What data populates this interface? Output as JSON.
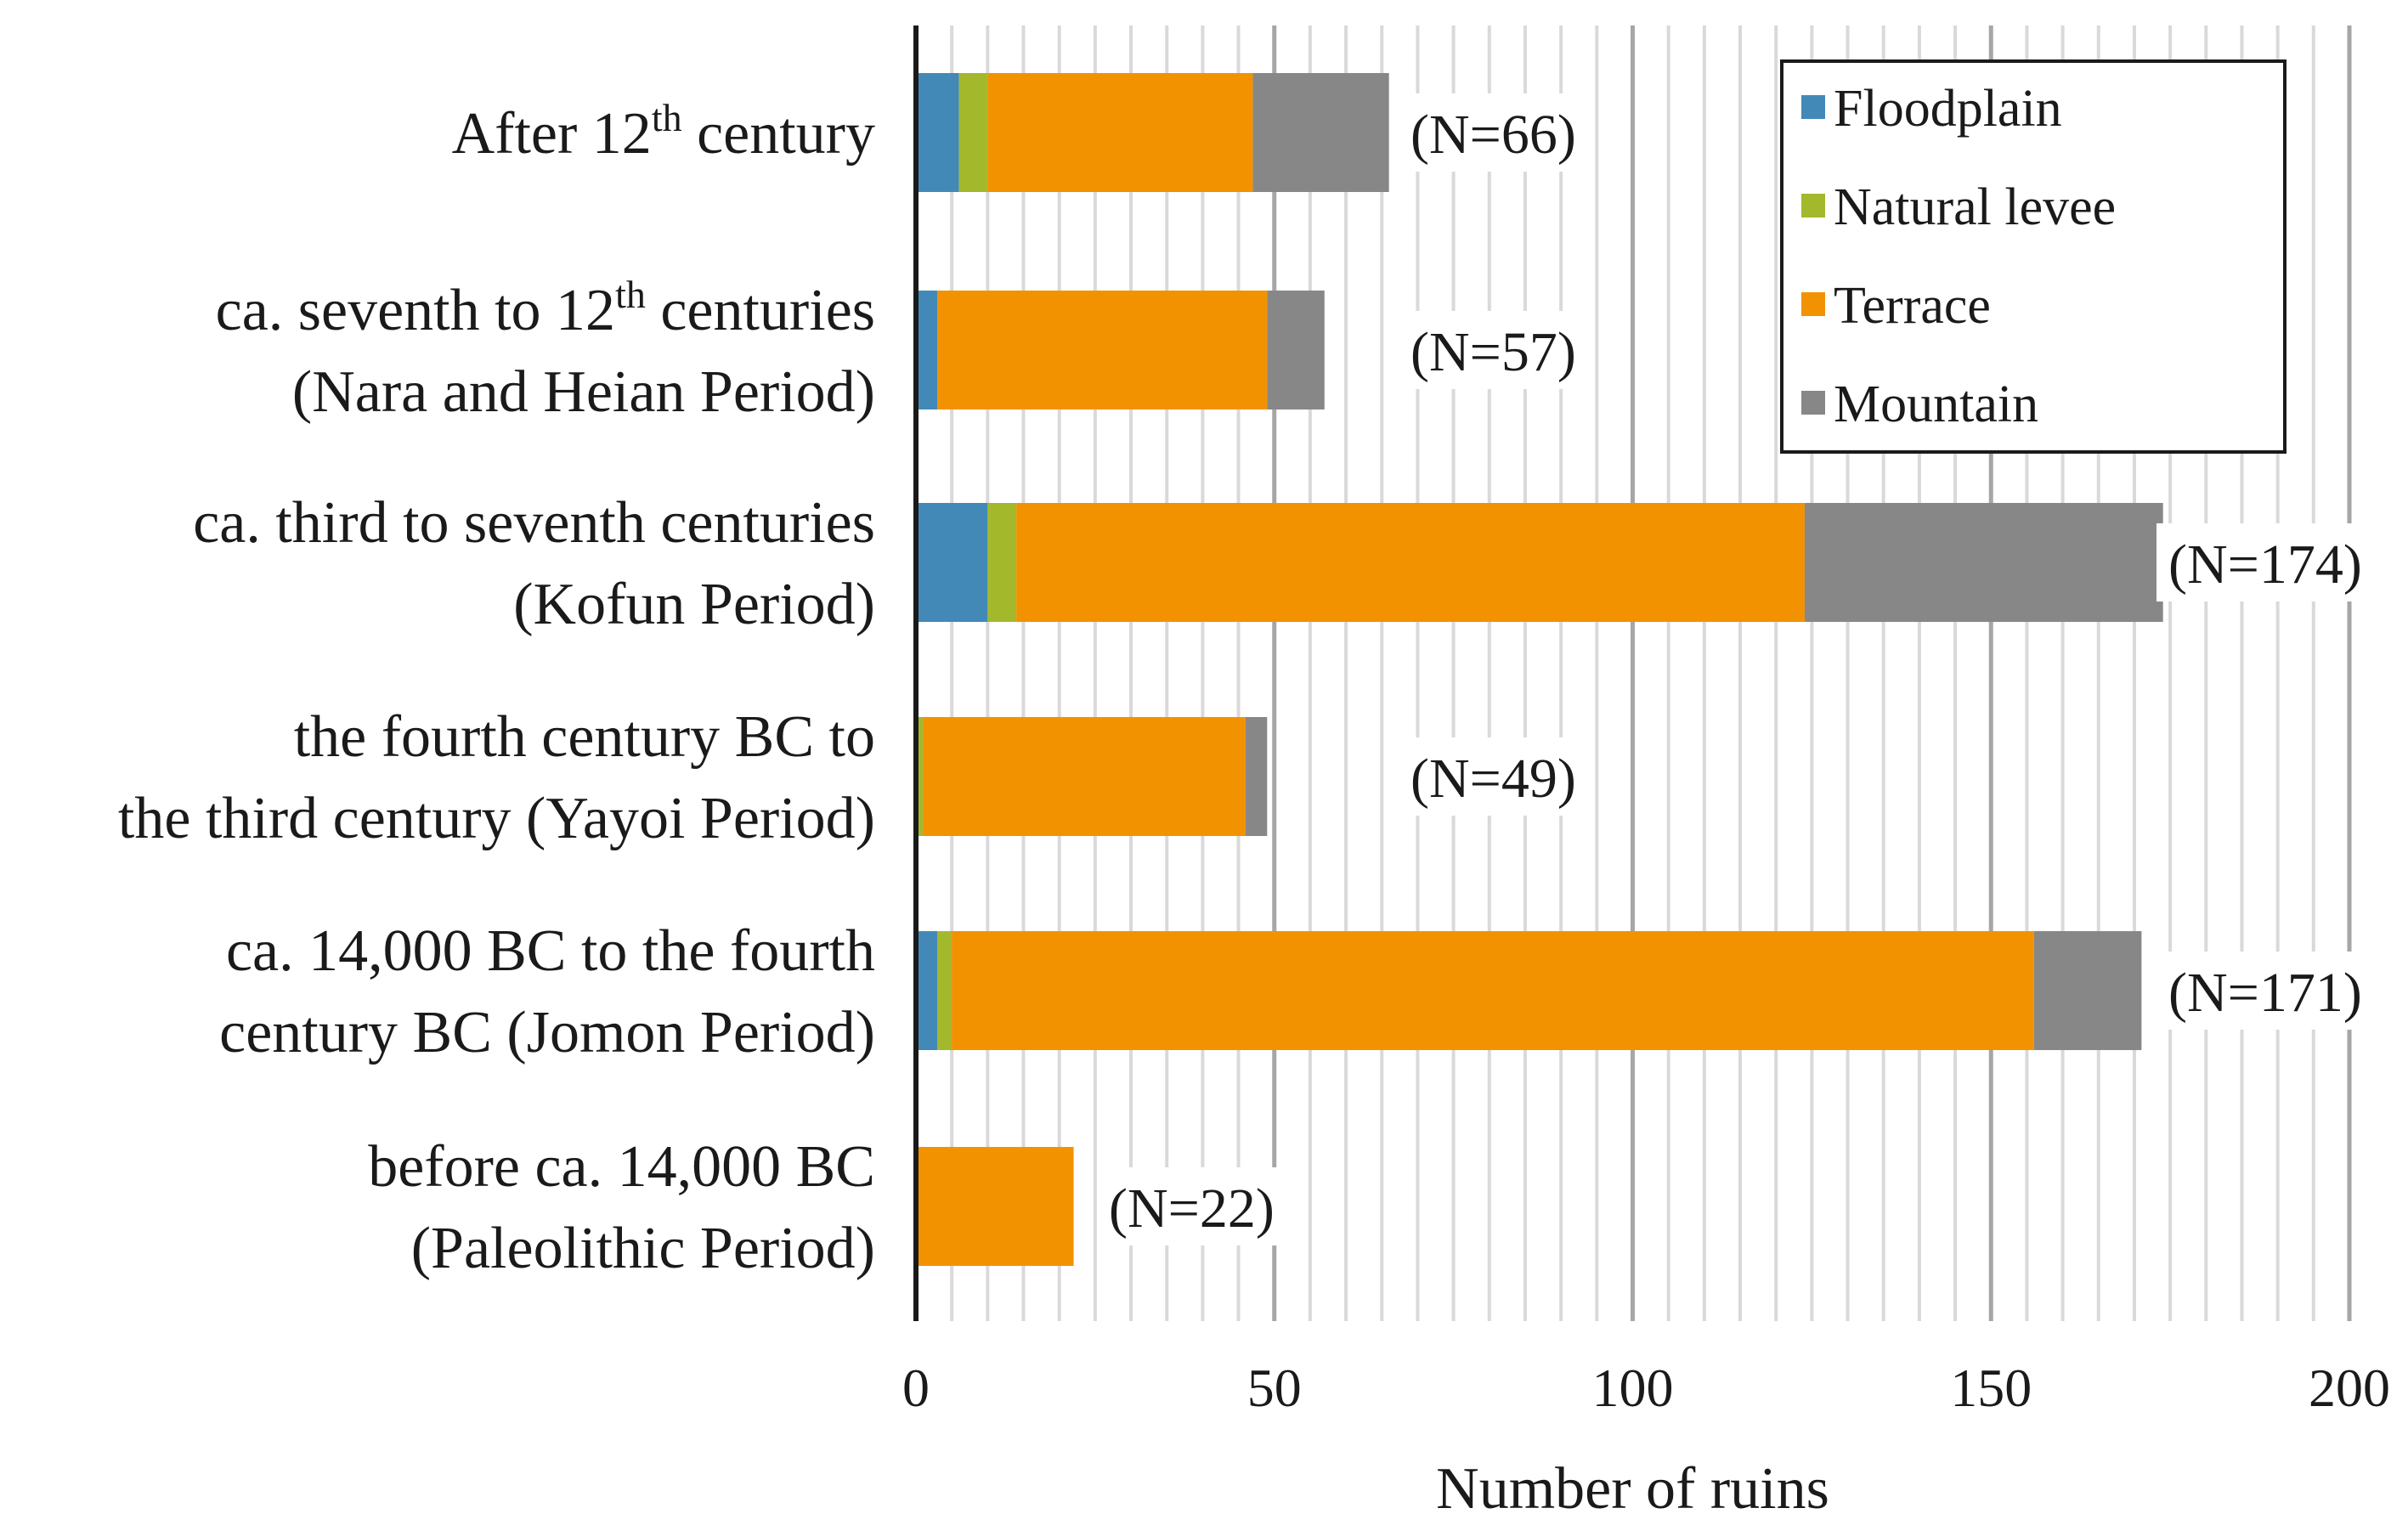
{
  "chart_data": {
    "type": "bar",
    "orientation": "horizontal",
    "stacked": true,
    "title": "",
    "xlabel": "Number of ruins",
    "ylabel": "",
    "xlim": [
      0,
      200
    ],
    "x_ticks": [
      "0",
      "50",
      "100",
      "150",
      "200"
    ],
    "grid": "vertical minor gridlines every 5, major every 50",
    "legend_position": "top-right",
    "categories": [
      {
        "lines": [
          "After 12th century"
        ],
        "sup_parts": [
          {
            "pre": "After 12",
            "sup": "th",
            "post": " century"
          }
        ],
        "n_label": "(N=66)"
      },
      {
        "lines": [
          "ca. seventh to 12th centuries",
          "(Nara and Heian Period)"
        ],
        "sup_parts": [
          {
            "pre": "ca. seventh to 12",
            "sup": "th",
            "post": " centuries"
          }
        ],
        "n_label": "(N=57)"
      },
      {
        "lines": [
          "ca. third to seventh centuries",
          "(Kofun Period)"
        ],
        "n_label": "(N=174)"
      },
      {
        "lines": [
          "the fourth century BC to",
          "the third century (Yayoi Period)"
        ],
        "n_label": "(N=49)"
      },
      {
        "lines": [
          "ca. 14,000 BC to the fourth",
          "century BC (Jomon Period)"
        ],
        "n_label": "(N=171)"
      },
      {
        "lines": [
          "before ca. 14,000 BC",
          "(Paleolithic Period)"
        ],
        "n_label": "(N=22)"
      }
    ],
    "series": [
      {
        "name": "Floodplain",
        "color": "#4289b8",
        "values": [
          6,
          3,
          10,
          0,
          3,
          0
        ]
      },
      {
        "name": "Natural levee",
        "color": "#a4b82b",
        "values": [
          4,
          0,
          4,
          1,
          2,
          0
        ]
      },
      {
        "name": "Terrace",
        "color": "#f39200",
        "values": [
          37,
          46,
          110,
          45,
          151,
          22
        ]
      },
      {
        "name": "Mountain",
        "color": "#878787",
        "values": [
          19,
          8,
          50,
          3,
          15,
          0
        ]
      }
    ]
  }
}
